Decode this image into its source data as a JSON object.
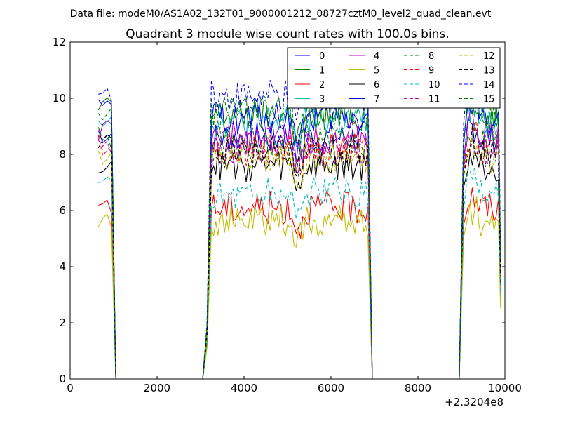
{
  "page": {
    "supertitle": "Data file: modeM0/AS1A02_132T01_9000001212_08727cztM0_level2_quad_clean.evt"
  },
  "chart_data": {
    "type": "line",
    "title": "Quadrant 3 module wise count rates with 100.0s bins.",
    "xlabel": "",
    "ylabel": "",
    "x_offset_label": "+2.3204e8",
    "xlim": [
      0,
      10000
    ],
    "ylim": [
      0,
      12
    ],
    "xticks": [
      "0",
      "2000",
      "4000",
      "6000",
      "8000",
      "10000"
    ],
    "yticks": [
      "0",
      "2",
      "4",
      "6",
      "8",
      "10",
      "12"
    ],
    "grid": false,
    "legend_position": "top-right",
    "legend_columns": 4,
    "segments": [
      {
        "x_start": 650,
        "x_end": 950
      },
      {
        "x_start": 3150,
        "x_end": 6850
      },
      {
        "x_start": 9050,
        "x_end": 9850
      }
    ],
    "zero_spans": [
      {
        "x": [
          1050,
          3050
        ]
      },
      {
        "x": [
          6950,
          8950
        ]
      }
    ],
    "series": [
      {
        "name": "0",
        "style": "solid",
        "color": "#0000ff",
        "level": 8.6
      },
      {
        "name": "1",
        "style": "solid",
        "color": "#008000",
        "level": 9.4
      },
      {
        "name": "2",
        "style": "solid",
        "color": "#ff0000",
        "level": 6.1
      },
      {
        "name": "3",
        "style": "solid",
        "color": "#00bfbf",
        "level": 9.2
      },
      {
        "name": "4",
        "style": "solid",
        "color": "#bf00bf",
        "level": 8.6
      },
      {
        "name": "5",
        "style": "solid",
        "color": "#bfbf00",
        "level": 5.6
      },
      {
        "name": "6",
        "style": "solid",
        "color": "#000000",
        "level": 7.6
      },
      {
        "name": "7",
        "style": "solid",
        "color": "#0000ff",
        "level": 9.3
      },
      {
        "name": "8",
        "style": "dashed",
        "color": "#008000",
        "level": 8.4
      },
      {
        "name": "9",
        "style": "dashed",
        "color": "#ff0000",
        "level": 8.2
      },
      {
        "name": "10",
        "style": "dashed",
        "color": "#00bfbf",
        "level": 6.6
      },
      {
        "name": "11",
        "style": "dashed",
        "color": "#bf00bf",
        "level": 8.2
      },
      {
        "name": "12",
        "style": "dashed",
        "color": "#bfbf00",
        "level": 7.9
      },
      {
        "name": "13",
        "style": "dashed",
        "color": "#000000",
        "level": 8.1
      },
      {
        "name": "14",
        "style": "dashed",
        "color": "#0000ff",
        "level": 10.1
      },
      {
        "name": "15",
        "style": "dashed",
        "color": "#008000",
        "level": 9.5
      }
    ]
  }
}
